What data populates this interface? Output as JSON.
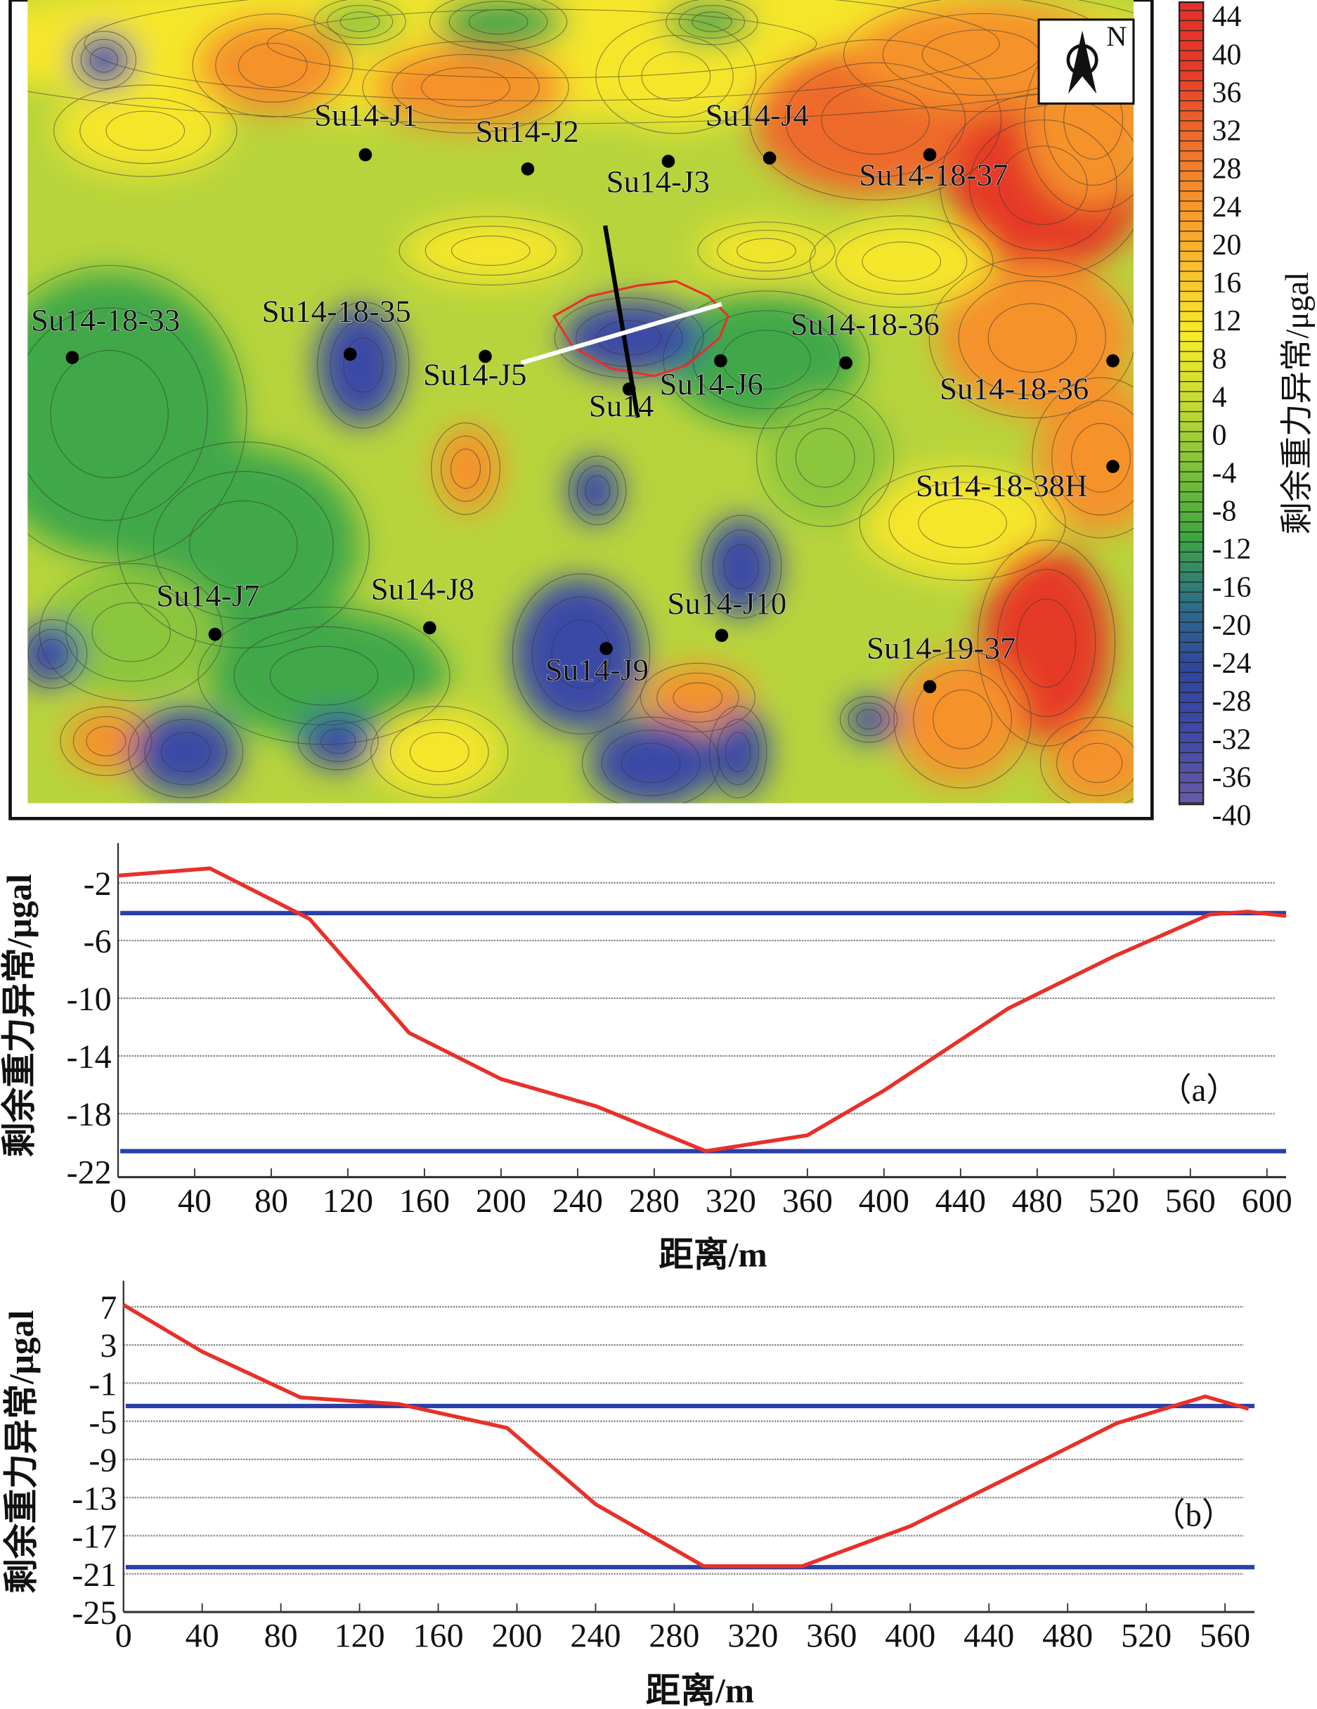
{
  "map": {
    "north_label": "N",
    "wells": [
      {
        "name": "Su14-J1"
      },
      {
        "name": "Su14-J2"
      },
      {
        "name": "Su14-J3"
      },
      {
        "name": "Su14-J4"
      },
      {
        "name": "Su14-18-37"
      },
      {
        "name": "Su14-18-33"
      },
      {
        "name": "Su14-18-35"
      },
      {
        "name": "Su14-J5"
      },
      {
        "name": "Su14"
      },
      {
        "name": "Su14-J6"
      },
      {
        "name": "Su14-18-36"
      },
      {
        "name": "Su14-18-36"
      },
      {
        "name": "Su14-18-38H"
      },
      {
        "name": "Su14-J7"
      },
      {
        "name": "Su14-J8"
      },
      {
        "name": "Su14-J9"
      },
      {
        "name": "Su14-J10"
      },
      {
        "name": "Su14-19-37"
      }
    ],
    "colorbar": {
      "title": "剩余重力异常/μgal",
      "ticks": [
        "44",
        "40",
        "36",
        "32",
        "28",
        "24",
        "20",
        "16",
        "12",
        "8",
        "4",
        "0",
        "-4",
        "-8",
        "-12",
        "-16",
        "-20",
        "-24",
        "-28",
        "-32",
        "-36",
        "-40"
      ],
      "range": [
        -40,
        44
      ],
      "colors": [
        "#6a5aa8",
        "#3f4aa6",
        "#2f45a0",
        "#2b6f88",
        "#3ea640",
        "#7cc13a",
        "#c6da32",
        "#f6ec26",
        "#f9c02c",
        "#f7942c",
        "#ee6a2a",
        "#e63a28",
        "#e5302a"
      ]
    }
  },
  "chart_data": [
    {
      "type": "line",
      "panel_label": "（a）",
      "xlabel": "距离/m",
      "ylabel": "剩余重力异常/μgal",
      "xlim": [
        0,
        610
      ],
      "ylim": [
        -22.4,
        0
      ],
      "xticks": [
        "0",
        "40",
        "80",
        "120",
        "160",
        "200",
        "240",
        "280",
        "320",
        "360",
        "400",
        "440",
        "480",
        "520",
        "560",
        "600"
      ],
      "yticks": [
        "-2",
        "-6",
        "-10",
        "-14",
        "-18",
        "-22"
      ],
      "grid": true,
      "series": [
        {
          "name": "profile",
          "color": "#e8302a",
          "x": [
            0,
            48,
            100,
            152,
            200,
            250,
            307,
            360,
            400,
            465,
            520,
            570,
            590,
            610
          ],
          "y": [
            -1.5,
            -1.0,
            -4.5,
            -12.4,
            -15.6,
            -17.5,
            -20.6,
            -19.5,
            -16.4,
            -10.7,
            -7.1,
            -4.2,
            -4.0,
            -4.3
          ]
        }
      ],
      "reference_lines": [
        {
          "y": -4.1,
          "color": "#2a3fa8"
        },
        {
          "y": -20.6,
          "color": "#2a3fa8"
        }
      ]
    },
    {
      "type": "line",
      "panel_label": "（b）",
      "xlabel": "距离/m",
      "ylabel": "剩余重力异常/μgal",
      "xlim": [
        0,
        575
      ],
      "ylim": [
        -25,
        8.6
      ],
      "xticks": [
        "0",
        "40",
        "80",
        "120",
        "160",
        "200",
        "240",
        "280",
        "320",
        "360",
        "400",
        "440",
        "480",
        "520",
        "560"
      ],
      "yticks": [
        "7",
        "3",
        "-1",
        "-5",
        "-9",
        "-13",
        "-17",
        "-21",
        "-25"
      ],
      "grid": true,
      "series": [
        {
          "name": "profile",
          "color": "#e8302a",
          "x": [
            0,
            40,
            90,
            140,
            195,
            240,
            295,
            345,
            400,
            450,
            505,
            550,
            572
          ],
          "y": [
            7.2,
            2.3,
            -2.5,
            -3.2,
            -5.7,
            -13.7,
            -20.2,
            -20.2,
            -16,
            -10.9,
            -5.2,
            -2.4,
            -3.7
          ]
        }
      ],
      "reference_lines": [
        {
          "y": -3.4,
          "color": "#2a3fa8"
        },
        {
          "y": -20.3,
          "color": "#2a3fa8"
        }
      ]
    }
  ]
}
